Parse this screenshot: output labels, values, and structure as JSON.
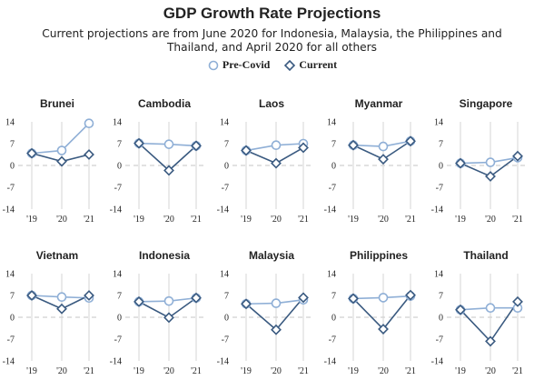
{
  "title": "GDP Growth Rate Projections",
  "subtitle": "Current projections are from June 2020 for Indonesia, Malaysia, the Philippines and Thailand, and April 2020 for all others",
  "legend": {
    "precovid": "Pre-Covid",
    "current": "Current"
  },
  "colors": {
    "precovid": "#8fafd6",
    "current": "#3a5a80",
    "grid": "#e0e0e0",
    "zero": "#d0d0d0"
  },
  "chart_data": {
    "type": "line",
    "small_multiples": true,
    "x": [
      "'19",
      "'20",
      "'21"
    ],
    "y_ticks": [
      14,
      7,
      0,
      -7,
      -14
    ],
    "ylim": [
      -14,
      14
    ],
    "series_names": [
      "Pre-Covid",
      "Current"
    ],
    "panels": [
      {
        "country": "Brunei",
        "precovid": [
          3.9,
          4.8,
          13.5
        ],
        "current": [
          3.9,
          1.3,
          3.5
        ]
      },
      {
        "country": "Cambodia",
        "precovid": [
          7.1,
          6.8,
          6.3
        ],
        "current": [
          7.1,
          -1.6,
          6.3
        ]
      },
      {
        "country": "Laos",
        "precovid": [
          4.8,
          6.5,
          7.0
        ],
        "current": [
          4.8,
          0.7,
          5.7
        ]
      },
      {
        "country": "Myanmar",
        "precovid": [
          6.5,
          6.1,
          7.8
        ],
        "current": [
          6.5,
          2.0,
          7.8
        ]
      },
      {
        "country": "Singapore",
        "precovid": [
          0.7,
          1.0,
          2.5
        ],
        "current": [
          0.7,
          -3.5,
          3.0
        ]
      },
      {
        "country": "Vietnam",
        "precovid": [
          7.0,
          6.5,
          6.2
        ],
        "current": [
          7.0,
          2.7,
          7.0
        ]
      },
      {
        "country": "Indonesia",
        "precovid": [
          5.0,
          5.2,
          6.2
        ],
        "current": [
          5.0,
          -0.1,
          6.2
        ]
      },
      {
        "country": "Malaysia",
        "precovid": [
          4.3,
          4.5,
          5.6
        ],
        "current": [
          4.3,
          -4.0,
          6.3
        ]
      },
      {
        "country": "Philippines",
        "precovid": [
          6.0,
          6.3,
          6.8
        ],
        "current": [
          6.0,
          -3.8,
          7.1
        ]
      },
      {
        "country": "Thailand",
        "precovid": [
          2.4,
          3.0,
          3.0
        ],
        "current": [
          2.4,
          -7.7,
          5.0
        ]
      }
    ]
  }
}
